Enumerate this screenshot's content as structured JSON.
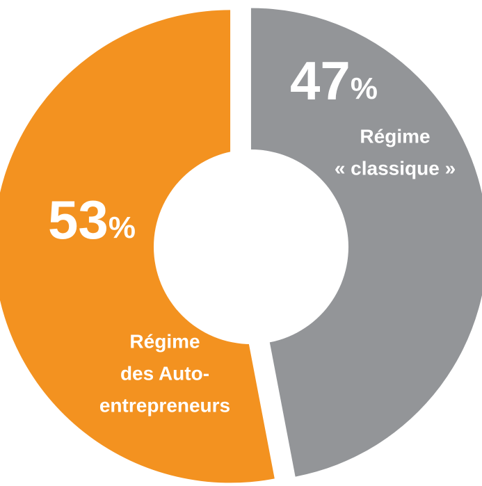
{
  "chart_data": {
    "type": "pie",
    "categories": [
      [
        "Régime",
        "« classique »"
      ],
      [
        "Régime",
        "des Auto-",
        "entrepreneurs"
      ]
    ],
    "values": [
      47,
      53
    ],
    "value_labels": [
      "47%",
      "53%"
    ],
    "colors": [
      "#939598",
      "#f39220"
    ]
  }
}
